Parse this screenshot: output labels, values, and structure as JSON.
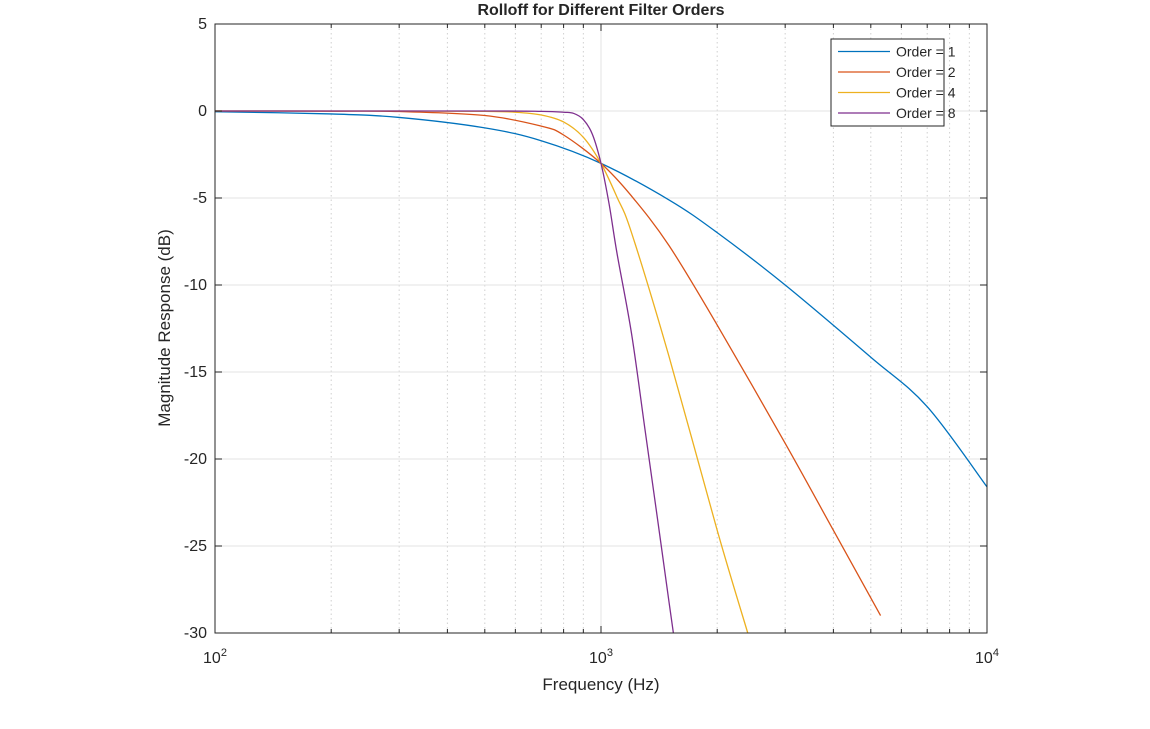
{
  "chart_data": {
    "type": "line",
    "title": "Rolloff for Different Filter Orders",
    "xlabel": "Frequency (Hz)",
    "ylabel": "Magnitude Response (dB)",
    "x_scale": "log",
    "xlim": [
      100,
      10000
    ],
    "ylim": [
      -30,
      5
    ],
    "grid": true,
    "legend_position": "top-right",
    "x_ticks": [
      {
        "value": 100,
        "base": "10",
        "exp": "2"
      },
      {
        "value": 1000,
        "base": "10",
        "exp": "3"
      },
      {
        "value": 10000,
        "base": "10",
        "exp": "4"
      }
    ],
    "y_ticks": [
      {
        "value": 5,
        "label": "5"
      },
      {
        "value": 0,
        "label": "0"
      },
      {
        "value": -5,
        "label": "-5"
      },
      {
        "value": -10,
        "label": "-10"
      },
      {
        "value": -15,
        "label": "-15"
      },
      {
        "value": -20,
        "label": "-20"
      },
      {
        "value": -25,
        "label": "-25"
      },
      {
        "value": -30,
        "label": "-30"
      }
    ],
    "series": [
      {
        "name": "Order = 1",
        "color": "#0072BD",
        "x": [
          100,
          200,
          300,
          500,
          700,
          1000,
          1500,
          2000,
          3000,
          5000,
          7000,
          10000
        ],
        "y": [
          -0.04,
          -0.17,
          -0.37,
          -0.97,
          -1.71,
          -3.01,
          -5.11,
          -6.99,
          -10.0,
          -14.15,
          -16.99,
          -21.6
        ]
      },
      {
        "name": "Order = 2",
        "color": "#D95319",
        "x": [
          100,
          200,
          300,
          500,
          700,
          800,
          1000,
          1200,
          1500,
          2000,
          3000,
          4000,
          5300
        ],
        "y": [
          0,
          -0.01,
          -0.03,
          -0.26,
          -0.87,
          -1.38,
          -3.01,
          -4.89,
          -7.73,
          -12.3,
          -19.1,
          -24.1,
          -29.0
        ]
      },
      {
        "name": "Order = 4",
        "color": "#EDB120",
        "x": [
          100,
          300,
          500,
          600,
          700,
          800,
          900,
          1000,
          1100,
          1200,
          1500,
          2000,
          2400
        ],
        "y": [
          0,
          0,
          -0.02,
          -0.07,
          -0.23,
          -0.63,
          -1.51,
          -3.01,
          -4.95,
          -7.0,
          -14.1,
          -24.1,
          -30.0
        ]
      },
      {
        "name": "Order = 8",
        "color": "#7E2F8E",
        "x": [
          100,
          500,
          700,
          800,
          850,
          900,
          950,
          1000,
          1050,
          1100,
          1200,
          1300,
          1400,
          1500,
          1540
        ],
        "y": [
          0,
          0,
          -0.02,
          -0.07,
          -0.14,
          -0.49,
          -1.34,
          -3.01,
          -5.37,
          -8.17,
          -12.8,
          -18.3,
          -23.4,
          -28.2,
          -30.0
        ]
      }
    ]
  }
}
